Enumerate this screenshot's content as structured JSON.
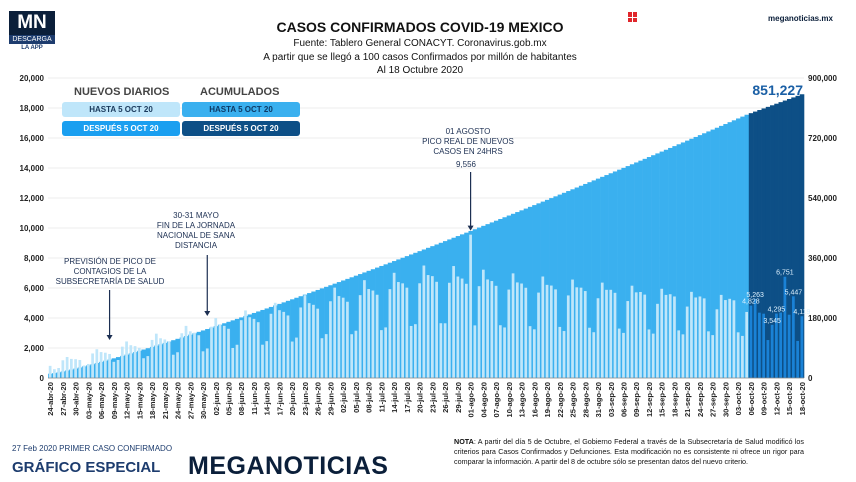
{
  "logo": {
    "mn": "MN",
    "descarga": "DESCARGA",
    "app": "LA APP"
  },
  "header": {
    "title": "CASOS CONFIRMADOS COVID-19 MEXICO",
    "source": "Fuente: Tablero General CONACYT. Coronavirus.gob.mx",
    "subtitle": "A partir que se llegó a 100 casos Confirmados por millón de habitantes",
    "date": "Al 18 Octubre 2020",
    "brand": "meganoticias.mx"
  },
  "legend": {
    "nuevos_title": "NUEVOS DIARIOS",
    "acum_title": "ACUMULADOS",
    "hasta": "HASTA 5 OCT 20",
    "despues": "DESPUÉS 5 OCT 20"
  },
  "colors": {
    "daily_before": "#bfe6fa",
    "cum_before": "#3ab0ef",
    "daily_after": "#1a82d6",
    "cum_after": "#0d4f86",
    "accent": "#1a5fa5"
  },
  "footer": {
    "first_case": "27 Feb 2020 PRIMER CASO CONFIRMADO",
    "grafico": "GRÁFICO ESPECIAL",
    "brand": "MEGANOTICIAS",
    "note_bold": "NOTA",
    "note": ": A partir del día 5 de Octubre, el Gobierno Federal a través de la Subsecretaría de Salud modificó los criterios para Casos Confirmados y Defunciones. Esta modificación no es consistente ni ofrece un rigor para comparar la información. A partir del 8 de octubre sólo se presentan datos del nuevo criterio."
  },
  "chart_data": {
    "type": "bar",
    "left_axis": {
      "ticks": [
        "20,000",
        "18,000",
        "16,000",
        "14,000",
        "12,000",
        "10,000",
        "8,000",
        "6,000",
        "4,000",
        "2,000",
        "0"
      ],
      "ylim": [
        0,
        20000
      ]
    },
    "right_axis": {
      "ticks": [
        "900,000",
        "720,000",
        "540,000",
        "360,000",
        "180,000",
        "0"
      ],
      "ylim": [
        0,
        900000
      ]
    },
    "x_start": "2020-04-24",
    "x_end": "2020-10-18",
    "x_tick_labels": [
      "24-abr-20",
      "27-abr-20",
      "30-abr-20",
      "03-may-20",
      "06-may-20",
      "09-may-20",
      "12-may-20",
      "15-may-20",
      "18-may-20",
      "21-may-20",
      "24-may-20",
      "27-may-20",
      "30-may-20",
      "02-jun-20",
      "05-jun-20",
      "08-jun-20",
      "11-jun-20",
      "14-jun-20",
      "17-jun-20",
      "20-jun-20",
      "23-jun-20",
      "26-jun-20",
      "29-jun-20",
      "02-jul-20",
      "05-jul-20",
      "08-jul-20",
      "11-jul-20",
      "14-jul-20",
      "17-jul-20",
      "20-jul-20",
      "23-jul-20",
      "26-jul-20",
      "29-jul-20",
      "01-ago-20",
      "04-ago-20",
      "07-ago-20",
      "10-ago-20",
      "13-ago-20",
      "16-ago-20",
      "19-ago-20",
      "22-ago-20",
      "25-ago-20",
      "28-ago-20",
      "31-ago-20",
      "03-sep-20",
      "06-sep-20",
      "09-sep-20",
      "12-sep-20",
      "15-sep-20",
      "18-sep-20",
      "21-sep-20",
      "24-sep-20",
      "27-sep-20",
      "30-sep-20",
      "03-oct-20",
      "06-oct-20",
      "09-oct-20",
      "12-oct-20",
      "15-oct-20",
      "18-oct-20"
    ],
    "series": [
      {
        "name": "ACUMULADOS",
        "key": "cumulative",
        "start_value": 12872,
        "end_value_before_change": 789780,
        "final_value": 851227
      },
      {
        "name": "NUEVOS DIARIOS",
        "key": "daily"
      }
    ],
    "daily_values_after_change": [
      {
        "date": "2020-10-06",
        "value": 4828
      },
      {
        "date": "2020-10-07",
        "value": 5263
      },
      {
        "date": "2020-10-11",
        "value": 3545
      },
      {
        "date": "2020-10-12",
        "value": 4295
      },
      {
        "date": "2020-10-14",
        "value": 6751
      },
      {
        "date": "2020-10-16",
        "value": 5447
      },
      {
        "date": "2020-10-18",
        "value": 4119
      }
    ],
    "annotations": [
      {
        "label": "PREVISIÓN DE PICO DE CONTAGIOS DE LA SUBSECRETARÍA DE SALUD",
        "date": "2020-05-08"
      },
      {
        "label": "30-31 MAYO FIN DE LA JORNADA NACIONAL DE SANA DISTANCIA",
        "date": "2020-05-31"
      },
      {
        "label": "01 AGOSTO PICO REAL DE NUEVOS CASOS EN 24HRS",
        "date": "2020-08-01",
        "value": 9556,
        "value_label": "9,556"
      }
    ],
    "final_label": "851,227"
  }
}
